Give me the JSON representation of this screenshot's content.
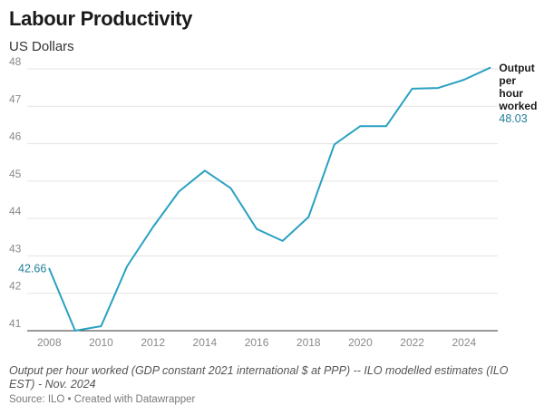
{
  "header": {
    "title": "Labour Productivity",
    "subtitle": "US Dollars"
  },
  "footer": {
    "note": "Output per hour worked (GDP constant 2021 international $ at PPP) -- ILO modelled estimates (ILO EST) - Nov. 2024",
    "source": "Source: ILO • Created with Datawrapper"
  },
  "chart_data": {
    "type": "line",
    "title": "Labour Productivity",
    "subtitle": "US Dollars",
    "x": [
      2008,
      2009,
      2010,
      2011,
      2012,
      2013,
      2014,
      2015,
      2016,
      2017,
      2018,
      2019,
      2020,
      2021,
      2022,
      2023,
      2024,
      2025
    ],
    "series": [
      {
        "name": "Output per hour worked",
        "color": "#2aa1c1",
        "values": [
          42.66,
          41.0,
          41.12,
          42.72,
          43.77,
          44.72,
          45.28,
          44.81,
          43.72,
          43.4,
          44.04,
          45.98,
          46.47,
          46.47,
          47.47,
          47.49,
          47.71,
          48.03
        ]
      }
    ],
    "labels": {
      "series_label": [
        "Output",
        "per",
        "hour",
        "worked"
      ],
      "start_value": "42.66",
      "end_value": "48.03"
    },
    "xticks": [
      "2008",
      "2010",
      "2012",
      "2014",
      "2016",
      "2018",
      "2020",
      "2022",
      "2024"
    ],
    "yticks": [
      "41",
      "42",
      "43",
      "44",
      "45",
      "46",
      "47",
      "48"
    ],
    "xlim": [
      2007.5,
      2025.3
    ],
    "ylim": [
      41,
      48
    ],
    "grid": true,
    "legend": "direct label at line end"
  }
}
